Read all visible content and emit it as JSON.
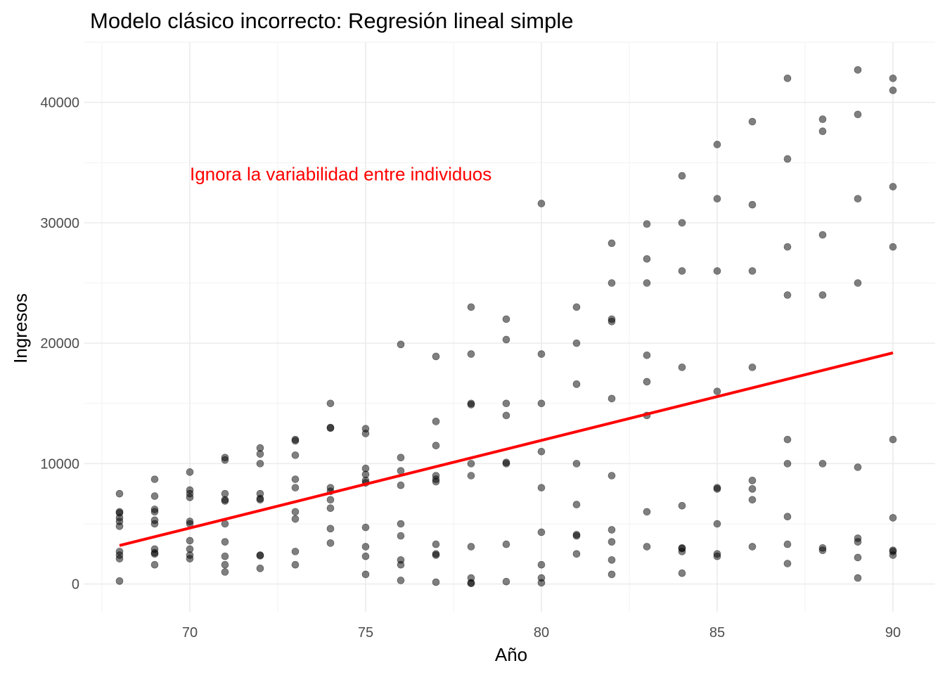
{
  "chart_data": {
    "type": "scatter",
    "title": "Modelo clásico incorrecto: Regresión lineal simple",
    "xlabel": "Año",
    "ylabel": "Ingresos",
    "xlim": [
      67,
      91.2
    ],
    "ylim": [
      -2300,
      45000
    ],
    "x_ticks": [
      70,
      75,
      80,
      85,
      90
    ],
    "y_ticks": [
      0,
      10000,
      20000,
      30000,
      40000
    ],
    "x_tick_labels": [
      "70",
      "75",
      "80",
      "85",
      "90"
    ],
    "y_tick_labels": [
      "0",
      "10000",
      "20000",
      "30000",
      "40000"
    ],
    "grid": true,
    "point_color": "#000000",
    "point_opacity": 0.5,
    "line_color": "#ff0000",
    "annotation": {
      "text": "Ignora la variabilidad entre individuos",
      "x": 70,
      "y": 34000,
      "color": "#ff0000"
    },
    "fit_line": {
      "x": [
        68,
        90
      ],
      "y": [
        3200,
        19200
      ]
    },
    "points": [
      [
        68,
        7500
      ],
      [
        68,
        6000
      ],
      [
        68,
        5900
      ],
      [
        68,
        5500
      ],
      [
        68,
        5200
      ],
      [
        68,
        4800
      ],
      [
        68,
        2700
      ],
      [
        68,
        2400
      ],
      [
        68,
        2100
      ],
      [
        68,
        250
      ],
      [
        69,
        8700
      ],
      [
        69,
        7300
      ],
      [
        69,
        6200
      ],
      [
        69,
        6000
      ],
      [
        69,
        5300
      ],
      [
        69,
        5000
      ],
      [
        69,
        2900
      ],
      [
        69,
        2600
      ],
      [
        69,
        2500
      ],
      [
        69,
        1600
      ],
      [
        70,
        9300
      ],
      [
        70,
        7800
      ],
      [
        70,
        7500
      ],
      [
        70,
        7200
      ],
      [
        70,
        5200
      ],
      [
        70,
        5000
      ],
      [
        70,
        3600
      ],
      [
        70,
        2900
      ],
      [
        70,
        2400
      ],
      [
        70,
        2100
      ],
      [
        71,
        10500
      ],
      [
        71,
        10300
      ],
      [
        71,
        7500
      ],
      [
        71,
        7000
      ],
      [
        71,
        6900
      ],
      [
        71,
        5000
      ],
      [
        71,
        3500
      ],
      [
        71,
        2300
      ],
      [
        71,
        1600
      ],
      [
        71,
        1000
      ],
      [
        72,
        11300
      ],
      [
        72,
        10800
      ],
      [
        72,
        10000
      ],
      [
        72,
        7500
      ],
      [
        72,
        7100
      ],
      [
        72,
        7000
      ],
      [
        72,
        2400
      ],
      [
        72,
        2350
      ],
      [
        72,
        1300
      ],
      [
        73,
        12000
      ],
      [
        73,
        11900
      ],
      [
        73,
        10700
      ],
      [
        73,
        8700
      ],
      [
        73,
        8000
      ],
      [
        73,
        6000
      ],
      [
        73,
        5400
      ],
      [
        73,
        2700
      ],
      [
        73,
        1600
      ],
      [
        74,
        15000
      ],
      [
        74,
        13000
      ],
      [
        74,
        12950
      ],
      [
        74,
        8000
      ],
      [
        74,
        7700
      ],
      [
        74,
        7000
      ],
      [
        74,
        6300
      ],
      [
        74,
        4600
      ],
      [
        74,
        3400
      ],
      [
        75,
        12900
      ],
      [
        75,
        12500
      ],
      [
        75,
        9600
      ],
      [
        75,
        9100
      ],
      [
        75,
        8600
      ],
      [
        75,
        8400
      ],
      [
        75,
        4700
      ],
      [
        75,
        3100
      ],
      [
        75,
        2300
      ],
      [
        75,
        800
      ],
      [
        76,
        19900
      ],
      [
        76,
        10500
      ],
      [
        76,
        9400
      ],
      [
        76,
        8200
      ],
      [
        76,
        5000
      ],
      [
        76,
        4000
      ],
      [
        76,
        2000
      ],
      [
        76,
        1600
      ],
      [
        76,
        300
      ],
      [
        77,
        18900
      ],
      [
        77,
        13500
      ],
      [
        77,
        11500
      ],
      [
        77,
        9000
      ],
      [
        77,
        8700
      ],
      [
        77,
        8500
      ],
      [
        77,
        3300
      ],
      [
        77,
        2500
      ],
      [
        77,
        2400
      ],
      [
        77,
        150
      ],
      [
        78,
        23000
      ],
      [
        78,
        19100
      ],
      [
        78,
        15000
      ],
      [
        78,
        14900
      ],
      [
        78,
        10000
      ],
      [
        78,
        9000
      ],
      [
        78,
        3100
      ],
      [
        78,
        500
      ],
      [
        78,
        100
      ],
      [
        78,
        50
      ],
      [
        79,
        22000
      ],
      [
        79,
        20300
      ],
      [
        79,
        15000
      ],
      [
        79,
        14000
      ],
      [
        79,
        10100
      ],
      [
        79,
        10000
      ],
      [
        79,
        3300
      ],
      [
        79,
        200
      ],
      [
        80,
        31600
      ],
      [
        80,
        19100
      ],
      [
        80,
        15000
      ],
      [
        80,
        11000
      ],
      [
        80,
        8000
      ],
      [
        80,
        4300
      ],
      [
        80,
        1600
      ],
      [
        80,
        500
      ],
      [
        80,
        100
      ],
      [
        81,
        23000
      ],
      [
        81,
        20000
      ],
      [
        81,
        16600
      ],
      [
        81,
        10000
      ],
      [
        81,
        6600
      ],
      [
        81,
        4100
      ],
      [
        81,
        4000
      ],
      [
        81,
        2500
      ],
      [
        82,
        28300
      ],
      [
        82,
        25000
      ],
      [
        82,
        22000
      ],
      [
        82,
        21800
      ],
      [
        82,
        15400
      ],
      [
        82,
        9000
      ],
      [
        82,
        4500
      ],
      [
        82,
        3500
      ],
      [
        82,
        2000
      ],
      [
        82,
        800
      ],
      [
        83,
        29900
      ],
      [
        83,
        27000
      ],
      [
        83,
        25000
      ],
      [
        83,
        19000
      ],
      [
        83,
        16800
      ],
      [
        83,
        14000
      ],
      [
        83,
        6000
      ],
      [
        83,
        3100
      ],
      [
        84,
        33900
      ],
      [
        84,
        30000
      ],
      [
        84,
        26000
      ],
      [
        84,
        18000
      ],
      [
        84,
        6500
      ],
      [
        84,
        3000
      ],
      [
        84,
        2950
      ],
      [
        84,
        2700
      ],
      [
        84,
        900
      ],
      [
        85,
        36500
      ],
      [
        85,
        32000
      ],
      [
        85,
        26000
      ],
      [
        85,
        16000
      ],
      [
        85,
        8000
      ],
      [
        85,
        7900
      ],
      [
        85,
        5000
      ],
      [
        85,
        2500
      ],
      [
        85,
        2300
      ],
      [
        86,
        38400
      ],
      [
        86,
        31500
      ],
      [
        86,
        26000
      ],
      [
        86,
        18000
      ],
      [
        86,
        8600
      ],
      [
        86,
        7900
      ],
      [
        86,
        7000
      ],
      [
        86,
        3100
      ],
      [
        87,
        42000
      ],
      [
        87,
        35300
      ],
      [
        87,
        28000
      ],
      [
        87,
        24000
      ],
      [
        87,
        12000
      ],
      [
        87,
        10000
      ],
      [
        87,
        5600
      ],
      [
        87,
        3300
      ],
      [
        87,
        1700
      ],
      [
        88,
        38600
      ],
      [
        88,
        37600
      ],
      [
        88,
        29000
      ],
      [
        88,
        24000
      ],
      [
        88,
        10000
      ],
      [
        88,
        3000
      ],
      [
        88,
        2800
      ],
      [
        89,
        42700
      ],
      [
        89,
        39000
      ],
      [
        89,
        32000
      ],
      [
        89,
        25000
      ],
      [
        89,
        9700
      ],
      [
        89,
        3800
      ],
      [
        89,
        3500
      ],
      [
        89,
        2200
      ],
      [
        89,
        500
      ],
      [
        90,
        42000
      ],
      [
        90,
        41000
      ],
      [
        90,
        33000
      ],
      [
        90,
        28000
      ],
      [
        90,
        12000
      ],
      [
        90,
        5500
      ],
      [
        90,
        2800
      ],
      [
        90,
        2700
      ],
      [
        90,
        2400
      ]
    ]
  }
}
